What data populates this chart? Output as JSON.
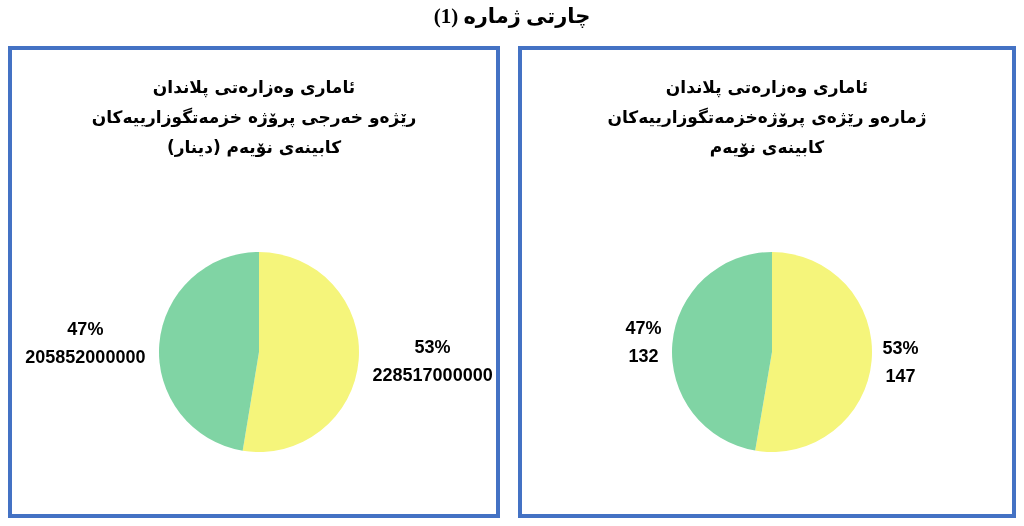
{
  "chart_data": [
    {
      "type": "pie",
      "title": "ئاماری وەزارەتی پلاندان\nرێژەو خەرجی پرۆژە خزمەتگوزارییەکان\nکابینەی نۆیەم (دینار)",
      "annotations": [
        "چارتی ژمارە (1)"
      ],
      "categories": [
        null,
        null
      ],
      "values": [
        228517000000,
        205852000000
      ],
      "colors": [
        "#f5f57b",
        "#80d4a4"
      ],
      "value_labels": [
        "53%\n228517000000",
        "47%\n205852000000"
      ]
    },
    {
      "type": "pie",
      "title": "ئاماری وەزارەتی پلاندان\nژمارەو رێژەی پرۆژەخزمەتگوزارییەکان\nکابینەی نۆیەم",
      "categories": [
        null,
        null
      ],
      "values": [
        147,
        132
      ],
      "colors": [
        "#f5f57b",
        "#80d4a4"
      ],
      "value_labels": [
        "53%\n147",
        "47%\n132"
      ]
    }
  ]
}
